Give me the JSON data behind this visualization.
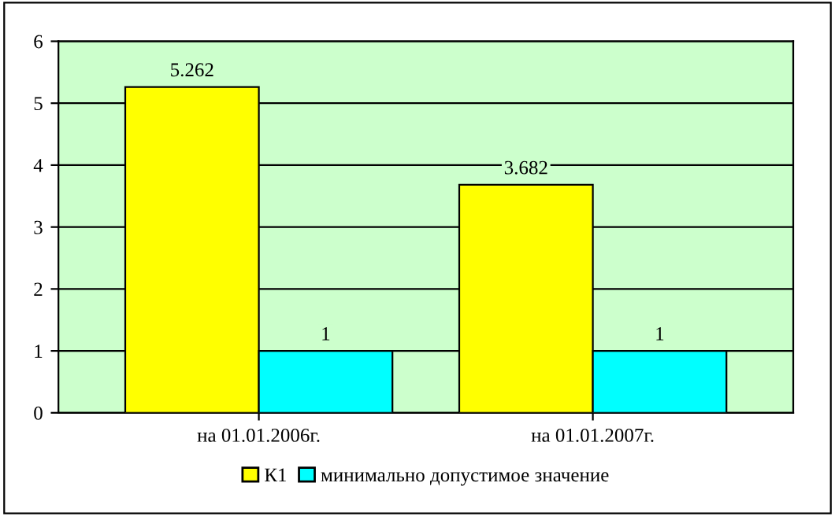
{
  "chart_data": {
    "type": "bar",
    "categories": [
      "на 01.01.2006г.",
      "на 01.01.2007г."
    ],
    "series": [
      {
        "name": "К1",
        "color": "#ffff00",
        "values": [
          5.262,
          3.682
        ]
      },
      {
        "name": "минимально допустимое значение",
        "color": "#00ffff",
        "values": [
          1,
          1
        ]
      }
    ],
    "ylim": [
      0,
      6
    ],
    "yticks": [
      0,
      1,
      2,
      3,
      4,
      5,
      6
    ],
    "grid": "y",
    "legend": "bottom",
    "data_labels": true
  }
}
